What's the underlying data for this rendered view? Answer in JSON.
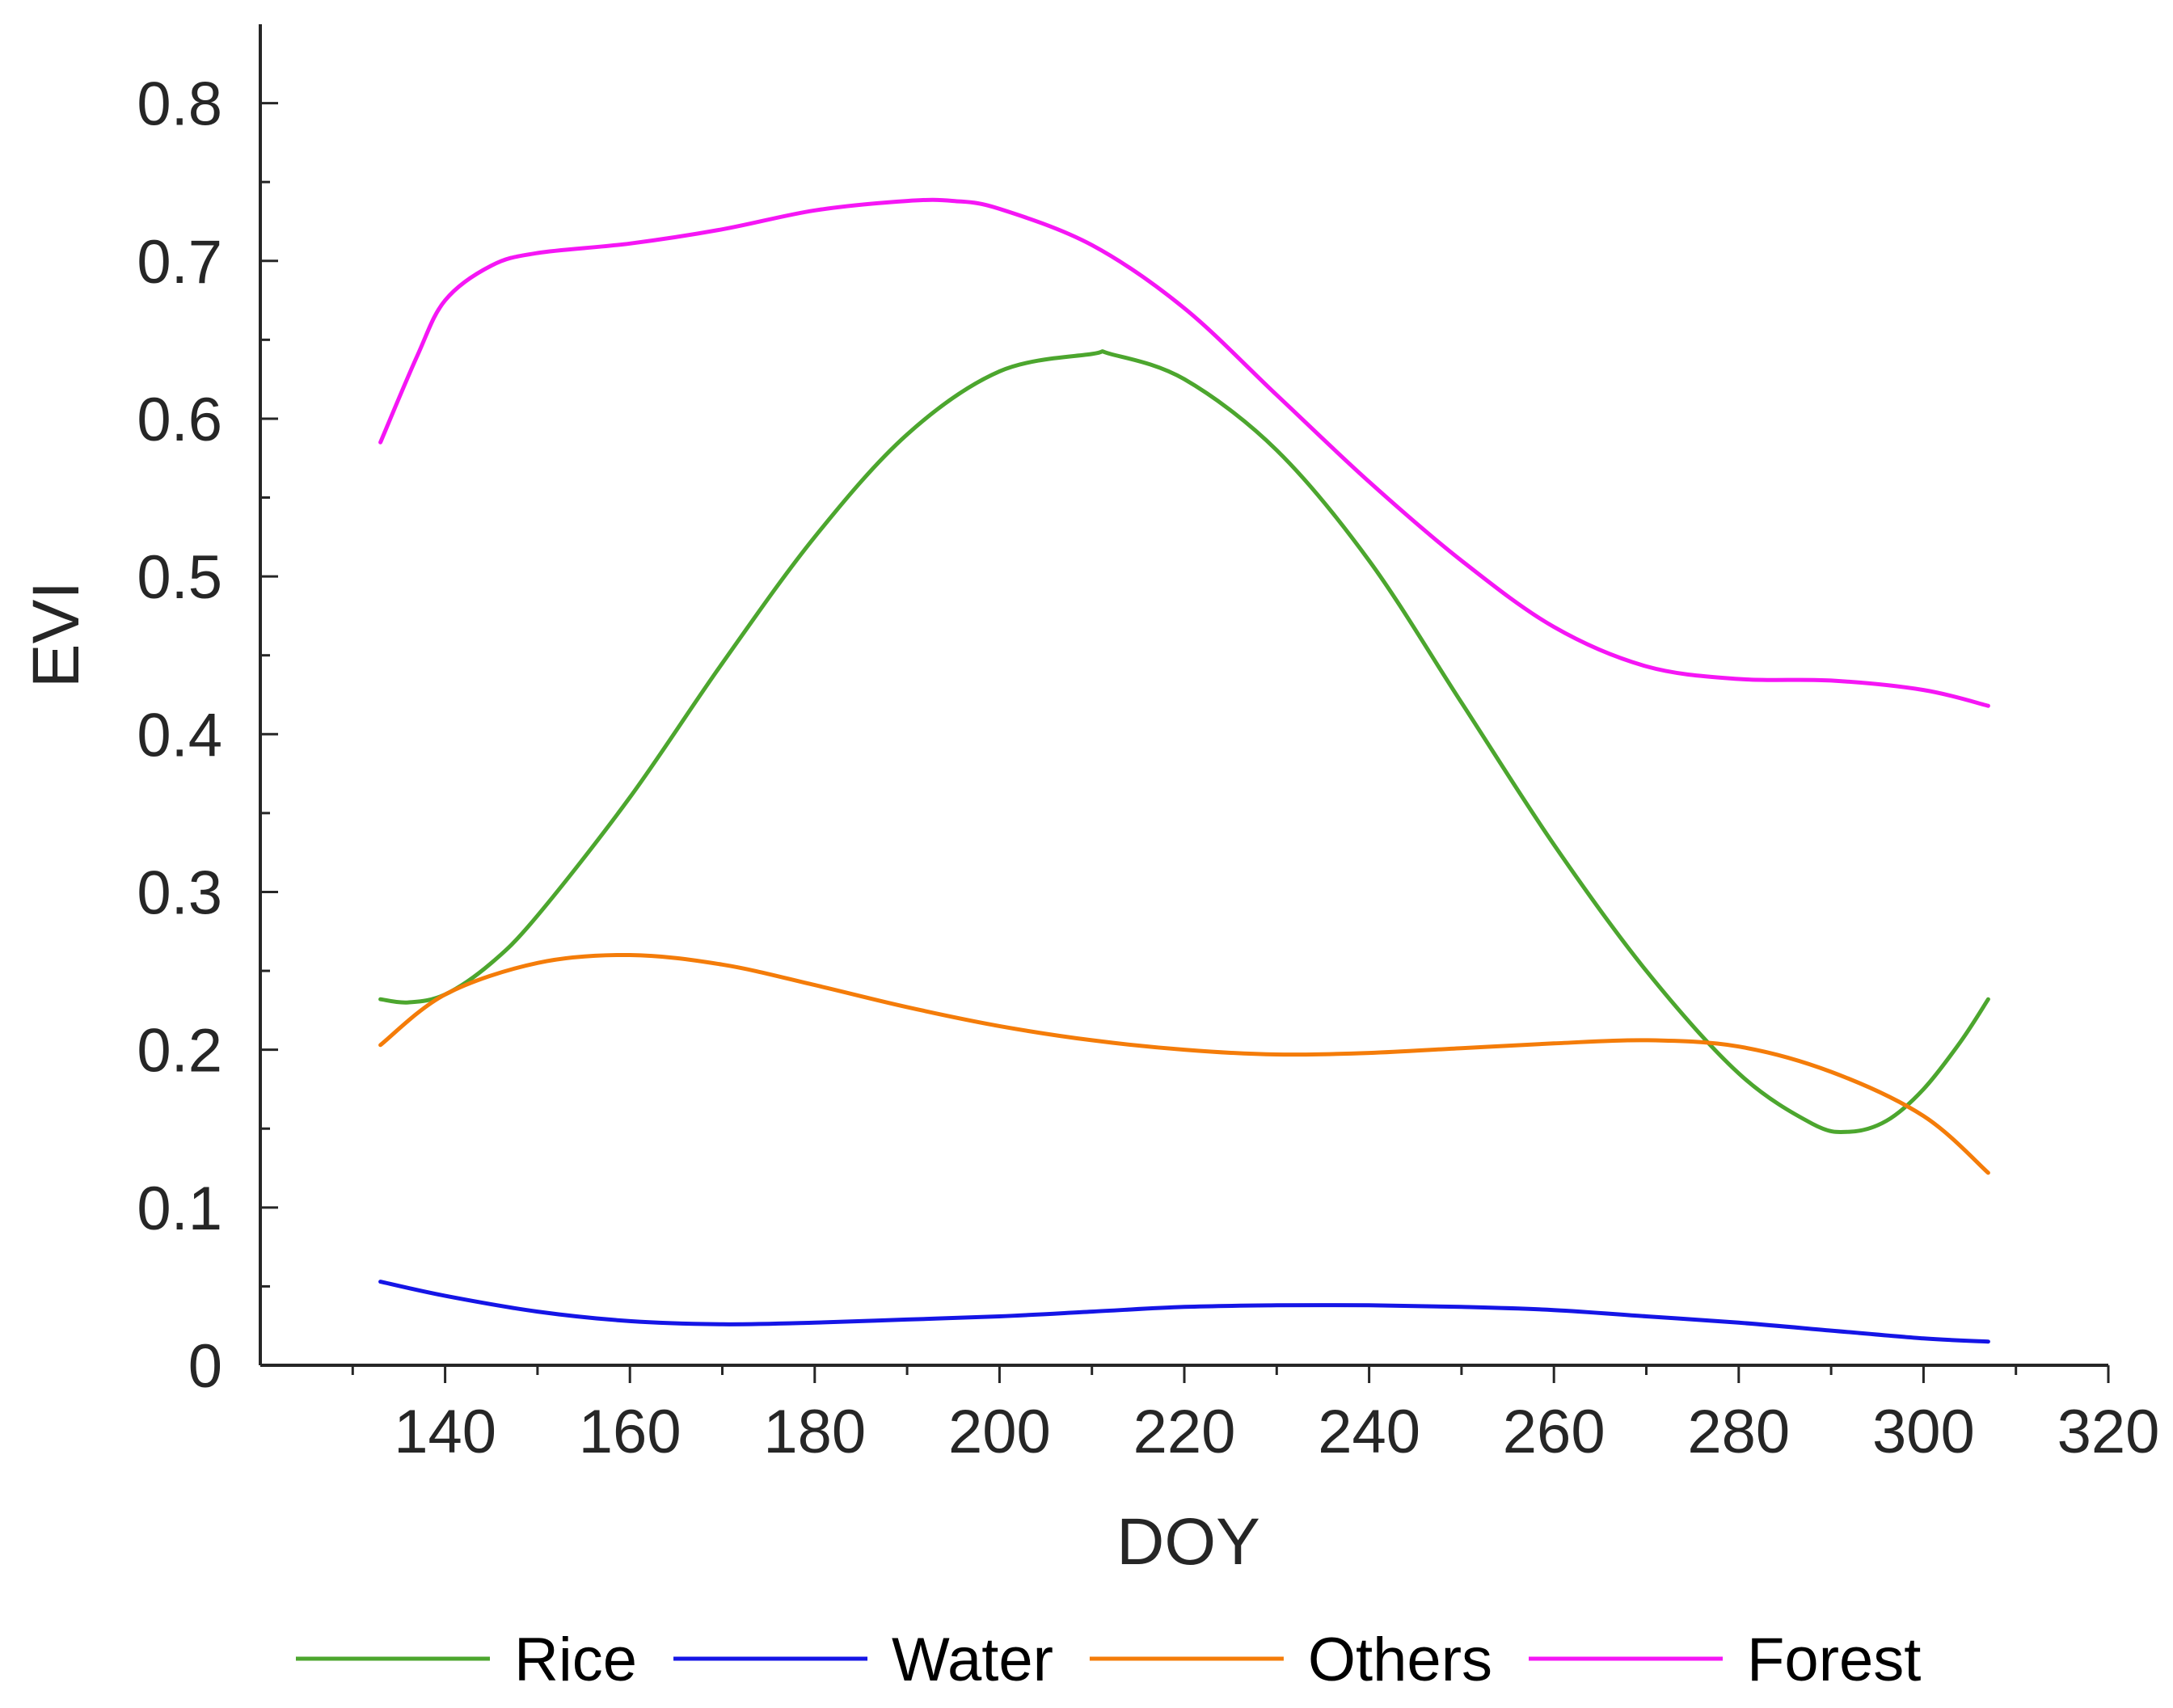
{
  "chart_data": {
    "type": "line",
    "title": "",
    "xlabel": "DOY",
    "ylabel": "EVI",
    "xlim": [
      120,
      320
    ],
    "ylim": [
      0,
      0.85
    ],
    "xticks": [
      140,
      160,
      180,
      200,
      220,
      240,
      260,
      280,
      300,
      320
    ],
    "xtick_labels": [
      "140",
      "160",
      "180",
      "200",
      "220",
      "240",
      "260",
      "280",
      "300",
      "320"
    ],
    "yticks": [
      0,
      0.1,
      0.2,
      0.3,
      0.4,
      0.5,
      0.6,
      0.7,
      0.8
    ],
    "ytick_labels": [
      "0",
      "0.1",
      "0.2",
      "0.3",
      "0.4",
      "0.5",
      "0.6",
      "0.7",
      "0.8"
    ],
    "grid": false,
    "legend_position": "bottom",
    "series": [
      {
        "name": "Rice",
        "color": "#4ca62e",
        "x": [
          133,
          136,
          140,
          145,
          150,
          160,
          170,
          180,
          190,
          200,
          210,
          212,
          220,
          230,
          240,
          250,
          260,
          270,
          280,
          288,
          292,
          296,
          300,
          304,
          307
        ],
        "y": [
          0.232,
          0.23,
          0.235,
          0.255,
          0.285,
          0.36,
          0.445,
          0.525,
          0.59,
          0.63,
          0.641,
          0.641,
          0.625,
          0.58,
          0.51,
          0.42,
          0.33,
          0.25,
          0.185,
          0.153,
          0.148,
          0.155,
          0.175,
          0.205,
          0.232
        ]
      },
      {
        "name": "Water",
        "color": "#1515e6",
        "x": [
          133,
          140,
          150,
          160,
          170,
          180,
          190,
          200,
          210,
          220,
          230,
          240,
          250,
          260,
          270,
          280,
          290,
          300,
          307
        ],
        "y": [
          0.053,
          0.044,
          0.034,
          0.028,
          0.026,
          0.027,
          0.029,
          0.031,
          0.034,
          0.037,
          0.038,
          0.038,
          0.037,
          0.035,
          0.031,
          0.027,
          0.022,
          0.017,
          0.015
        ]
      },
      {
        "name": "Others",
        "color": "#f47c09",
        "x": [
          133,
          140,
          150,
          160,
          170,
          180,
          190,
          200,
          210,
          220,
          230,
          240,
          250,
          260,
          270,
          280,
          290,
          300,
          307
        ],
        "y": [
          0.203,
          0.235,
          0.255,
          0.26,
          0.254,
          0.241,
          0.227,
          0.215,
          0.206,
          0.2,
          0.197,
          0.198,
          0.201,
          0.204,
          0.206,
          0.202,
          0.186,
          0.158,
          0.122
        ]
      },
      {
        "name": "Forest",
        "color": "#f516f5",
        "x": [
          133,
          137,
          140,
          145,
          150,
          160,
          170,
          180,
          190,
          195,
          200,
          210,
          220,
          230,
          240,
          250,
          260,
          270,
          280,
          290,
          300,
          307
        ],
        "y": [
          0.585,
          0.64,
          0.675,
          0.697,
          0.705,
          0.711,
          0.72,
          0.732,
          0.738,
          0.738,
          0.733,
          0.71,
          0.67,
          0.615,
          0.56,
          0.51,
          0.468,
          0.443,
          0.435,
          0.434,
          0.428,
          0.418
        ]
      }
    ]
  }
}
